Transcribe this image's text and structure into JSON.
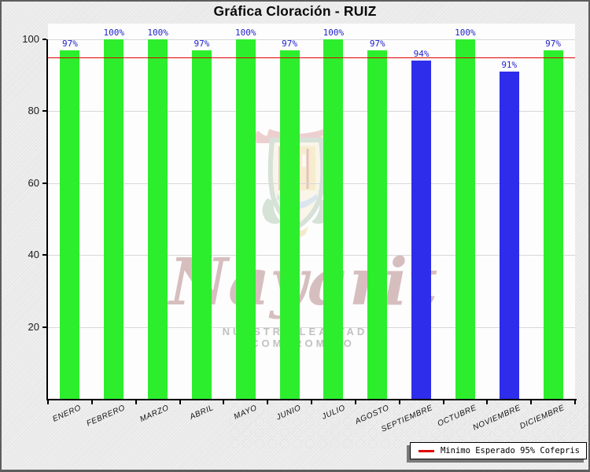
{
  "window": {
    "background_color": "#ECECEC",
    "frame_color": "#5D5D5D"
  },
  "chart_data": {
    "type": "bar",
    "title": "Gráfica Cloración - RUIZ",
    "categories": [
      "ENERO",
      "FEBRERO",
      "MARZO",
      "ABRIL",
      "MAYO",
      "JUNIO",
      "JULIO",
      "AGOSTO",
      "SEPTIEMBRE",
      "OCTUBRE",
      "NOVIEMBRE",
      "DICIEMBRE"
    ],
    "values": [
      97,
      100,
      100,
      97,
      100,
      97,
      100,
      97,
      94,
      100,
      91,
      97
    ],
    "value_labels": [
      "97%",
      "100%",
      "100%",
      "97%",
      "100%",
      "97%",
      "100%",
      "97%",
      "94%",
      "100%",
      "91%",
      "97%"
    ],
    "bar_colors": [
      "#2DEE2D",
      "#2DEE2D",
      "#2DEE2D",
      "#2DEE2D",
      "#2DEE2D",
      "#2DEE2D",
      "#2DEE2D",
      "#2DEE2D",
      "#2D2DEB",
      "#2DEE2D",
      "#2D2DEB",
      "#2DEE2D"
    ],
    "bar_color_at_or_above_min": "#2DEE2D",
    "bar_color_below_min": "#2D2DEB",
    "value_label_color": "#2222CC",
    "xlabel": "",
    "ylabel": "",
    "ylim": [
      0,
      100
    ],
    "yticks": [
      20,
      40,
      60,
      80,
      100
    ],
    "grid": true,
    "gridline_color": "#D8D8D8",
    "plot_background": "#FDFDFD",
    "threshold_line": {
      "value": 95,
      "color": "#E00000",
      "label": "Minimo Esperado 95% Cofepris"
    },
    "legend_position": "bottom-right"
  },
  "legend": {
    "items": [
      {
        "label": "Minimo Esperado 95% Cofepris",
        "swatch_color": "#E00000"
      }
    ]
  },
  "watermark": {
    "script_text": "Nayarit",
    "caption_text": "NUESTRA LEALTAD Y COMPROMISO"
  }
}
